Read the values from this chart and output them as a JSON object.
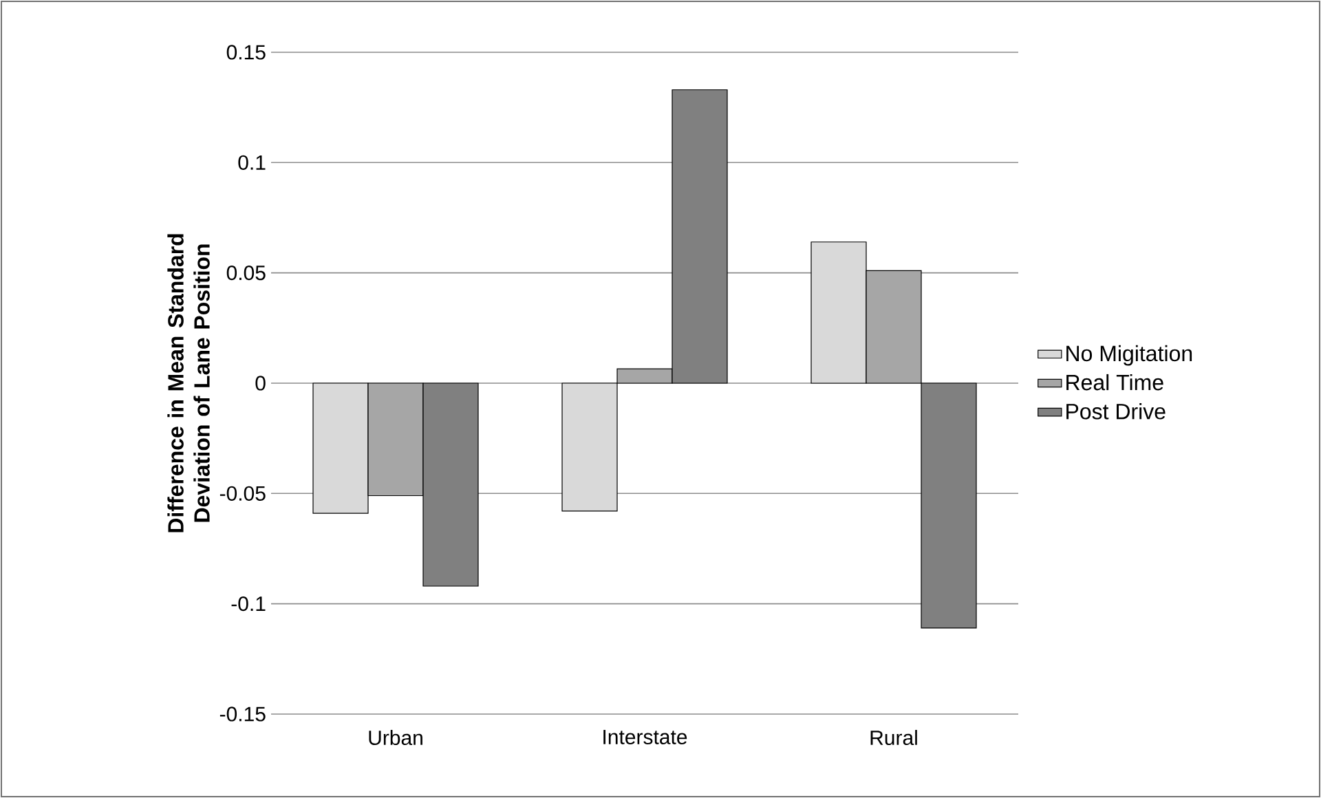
{
  "chart_data": {
    "type": "bar",
    "ylabel": "Difference in Mean Standard Deviation of Lane Position",
    "categories": [
      "Urban",
      "Interstate",
      "Rural"
    ],
    "series": [
      {
        "name": "No Migitation",
        "color": "#d9d9d9",
        "values": [
          -0.059,
          -0.058,
          0.064
        ]
      },
      {
        "name": "Real Time",
        "color": "#a6a6a6",
        "values": [
          -0.051,
          0.0065,
          0.051
        ]
      },
      {
        "name": "Post Drive",
        "color": "#808080",
        "values": [
          -0.092,
          0.133,
          -0.111
        ]
      }
    ],
    "ylim": [
      -0.15,
      0.15
    ],
    "yticks": [
      -0.15,
      -0.1,
      -0.05,
      0,
      0.05,
      0.1,
      0.15
    ],
    "grid": "y",
    "legend": "right"
  }
}
